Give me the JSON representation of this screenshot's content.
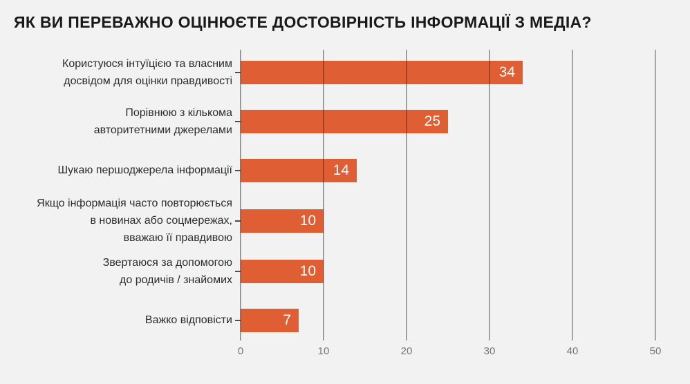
{
  "page": {
    "background": "#F2F2F2"
  },
  "chart_data": {
    "type": "bar",
    "orientation": "horizontal",
    "title": "ЯК ВИ ПЕРЕВАЖНО ОЦІНЮЄТЕ ДОСТОВІРНІСТЬ ІНФОРМАЦІЇ З МЕДІА?",
    "categories": [
      "Користуюся інтуїцією та власним досвідом для оцінки правдивості",
      "Порівнюю з кількома авторитетними джерелами",
      "Шукаю першоджерела інформації",
      "Якщо інформація часто повторюється в новинах або соцмережах, вважаю її правдивою",
      "Звертаюся за допомогою до родичів / знайомих",
      "Важко відповісти"
    ],
    "label_lines": [
      [
        "Користуюся інтуїцією та власним",
        "досвідом для оцінки правдивості"
      ],
      [
        "Порівнюю з кількома",
        "авторитетними джерелами"
      ],
      [
        "Шукаю першоджерела інформації"
      ],
      [
        "Якщо інформація часто повторюється",
        "в новинах або соцмережах,",
        "вважаю її правдивою"
      ],
      [
        "Звертаюся за допомогою",
        "до родичів / знайомих"
      ],
      [
        "Важко відповісти"
      ]
    ],
    "values": [
      34,
      25,
      14,
      10,
      10,
      7
    ],
    "xlabel": "",
    "ylabel": "",
    "xlim": [
      0,
      50
    ],
    "x_ticks": [
      0,
      10,
      20,
      30,
      40,
      50
    ],
    "grid": "vertical gridlines on, drawn over bars",
    "legend": "none",
    "value_labels": "inside bar, right-aligned, white",
    "colors": {
      "bar": "#DF5E33",
      "value_label": "#FFFFFF",
      "gridline": "#4D4D4D",
      "axis_tick_label": "#757575",
      "category_label": "#2B2B2B",
      "title": "#1A1A1A",
      "background": "#F2F2F2"
    }
  }
}
